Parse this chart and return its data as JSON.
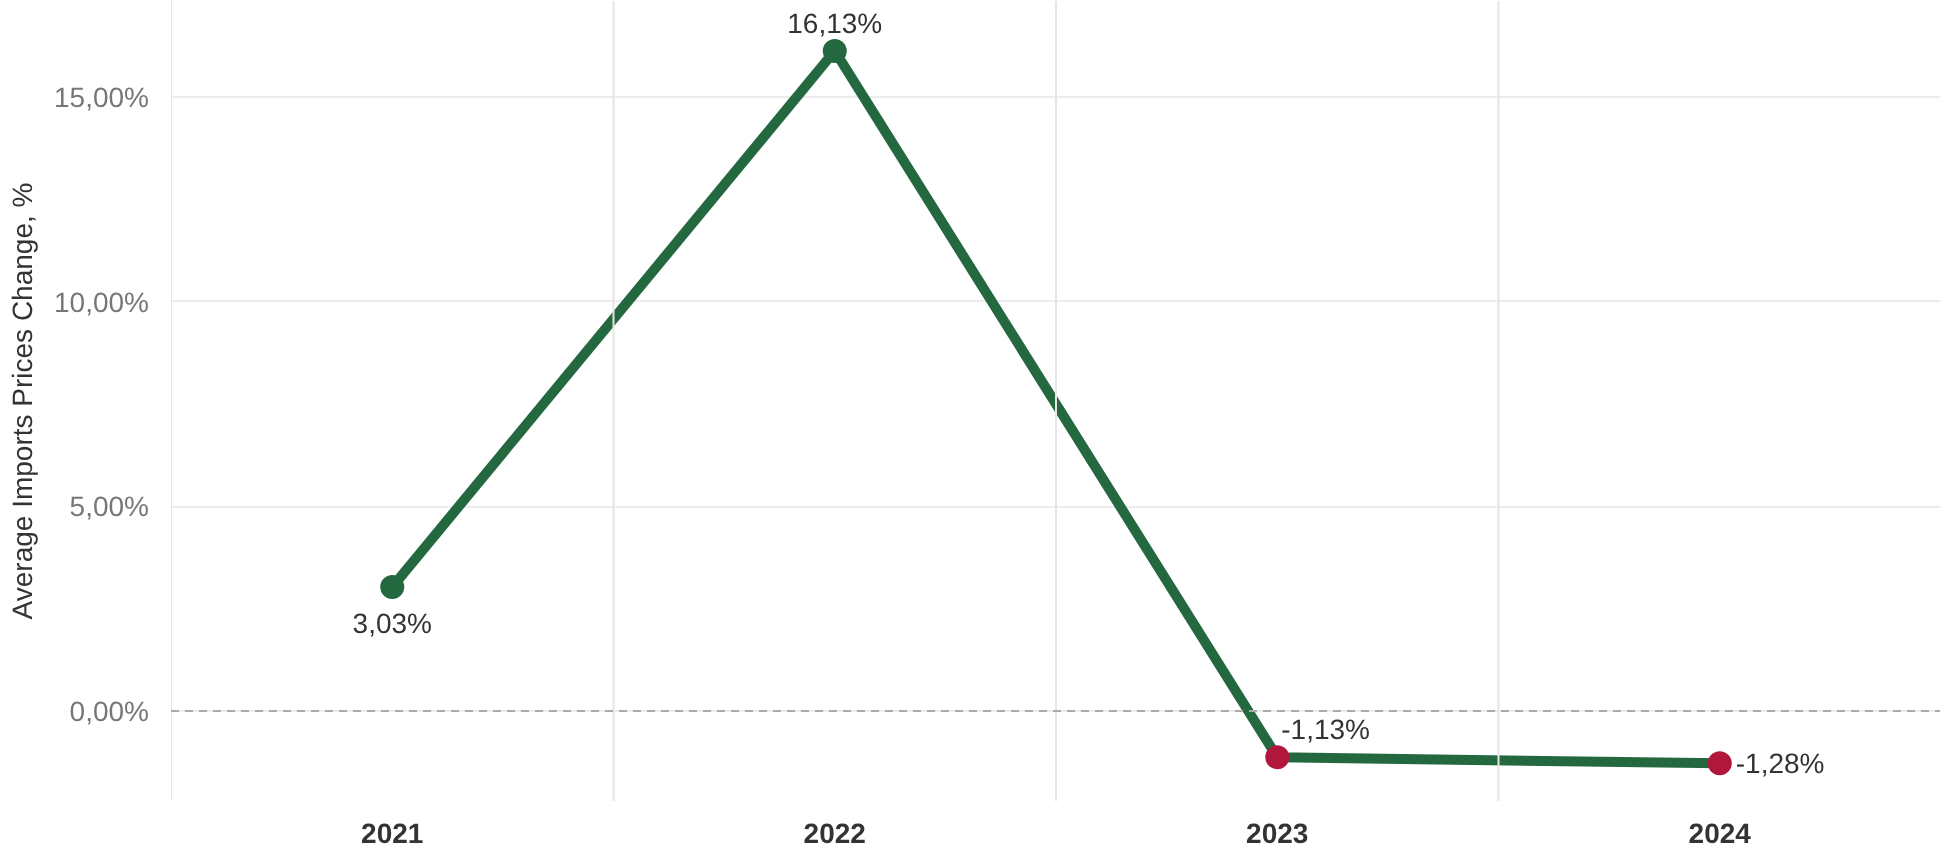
{
  "chart_data": {
    "type": "line",
    "ylabel": "Average Imports Prices Change, %",
    "categories": [
      "2021",
      "2022",
      "2023",
      "2024"
    ],
    "series": [
      {
        "color": "#24683f",
        "colors": [
          "#24683f",
          "#24683f",
          "#b0173b",
          "#b0173b"
        ],
        "values": [
          3.03,
          16.13,
          -1.13,
          -1.28
        ],
        "value_labels": [
          "3,03%",
          "16,13%",
          "-1,13%",
          "-1,28%"
        ]
      }
    ],
    "ylim": [
      -2.2,
      17.35
    ],
    "yticks": [
      {
        "value": 0,
        "label": "0,00%"
      },
      {
        "value": 5,
        "label": "5,00%"
      },
      {
        "value": 10,
        "label": "10,00%"
      },
      {
        "value": 15,
        "label": "15,00%"
      }
    ],
    "ref_lines": [
      {
        "axis": "y",
        "value": 0,
        "color": "#aaaaaa",
        "line_style": "dashed"
      }
    ],
    "grid": "y",
    "marker": "circle",
    "line_style": "solid"
  }
}
